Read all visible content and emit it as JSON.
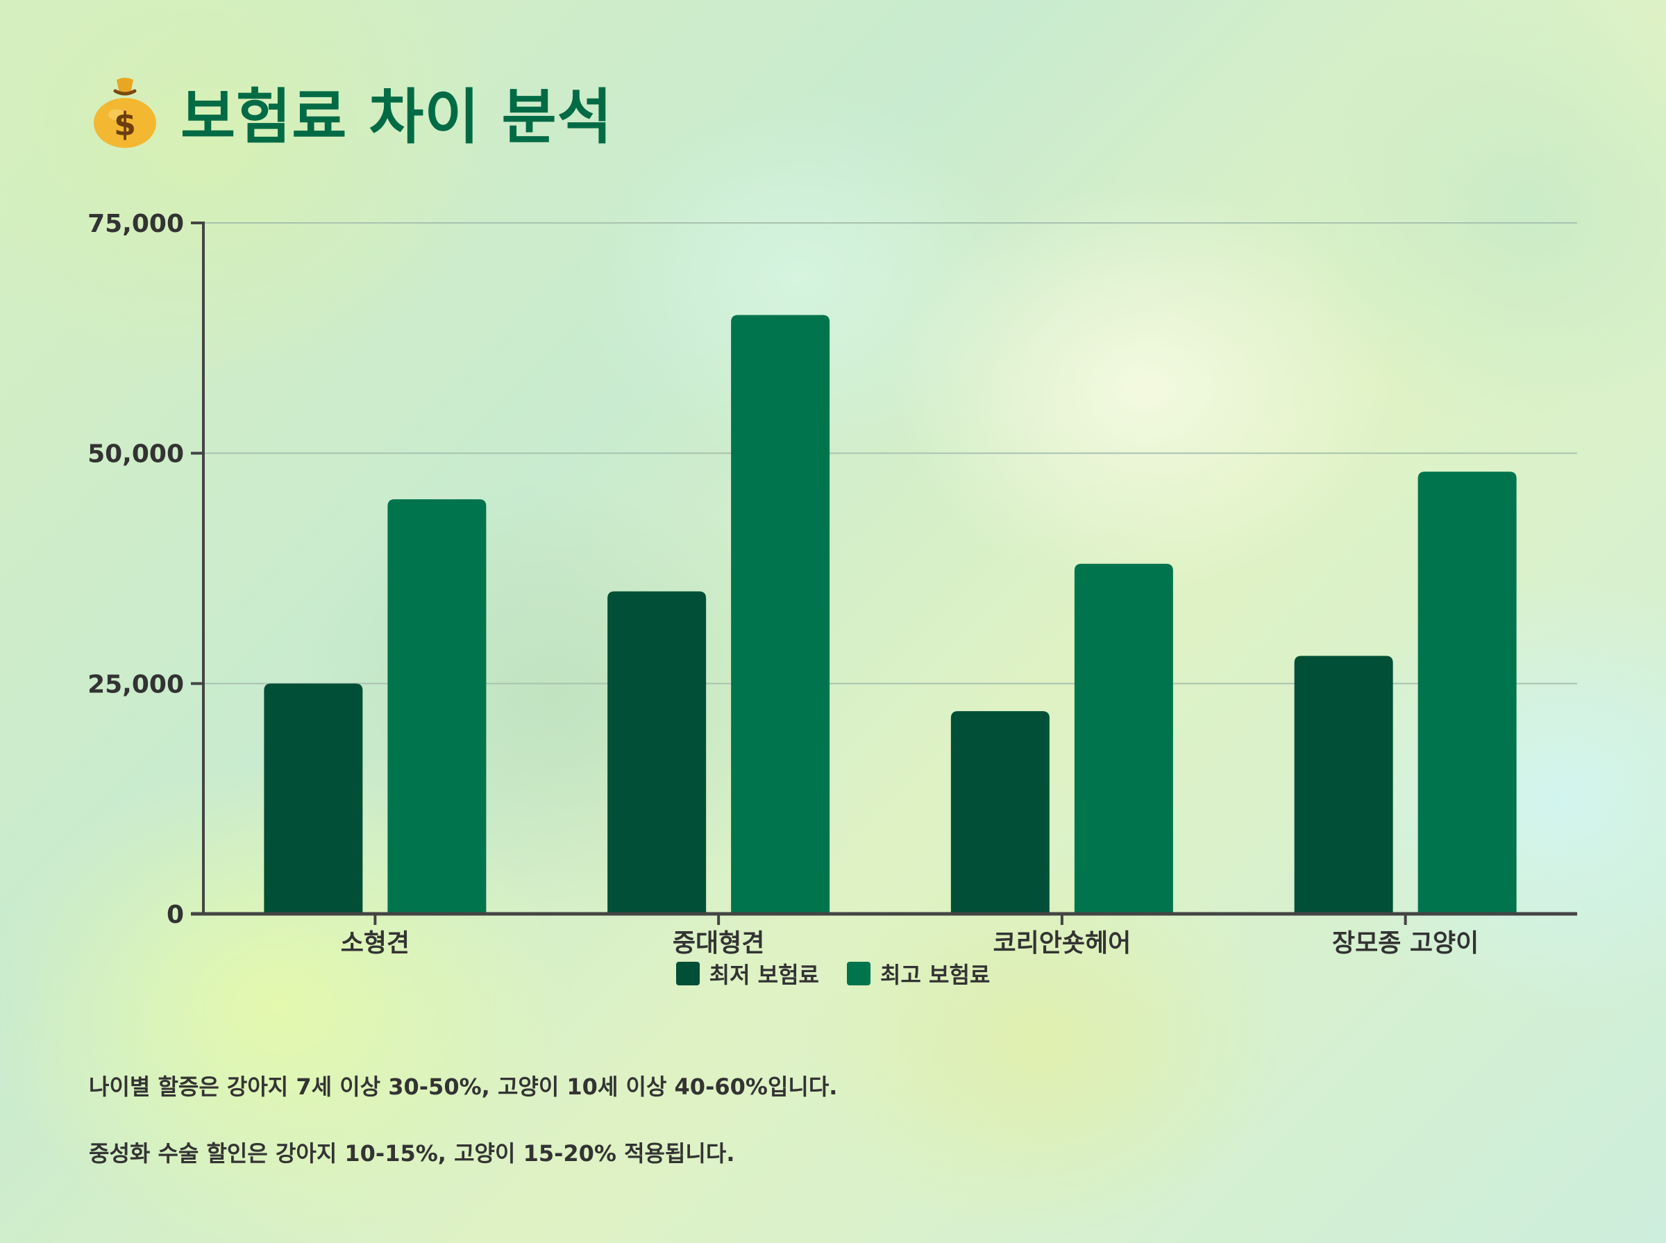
{
  "header": {
    "icon": "money-bag-icon",
    "title": "보험료 차이 분석"
  },
  "colors": {
    "title": "#006b45",
    "series_min": "#004f36",
    "series_max": "#00744d",
    "axis": "#444444",
    "grid": "#a9c3b0"
  },
  "chart_data": {
    "type": "bar",
    "title": "",
    "xlabel": "",
    "ylabel": "",
    "categories": [
      "소형견",
      "중대형견",
      "코리안숏헤어",
      "장모종 고양이"
    ],
    "series": [
      {
        "name": "최저 보험료",
        "values": [
          25000,
          35000,
          22000,
          28000
        ]
      },
      {
        "name": "최고 보험료",
        "values": [
          45000,
          65000,
          38000,
          48000
        ]
      }
    ],
    "ylim": [
      0,
      75000
    ],
    "yticks": [
      0,
      25000,
      50000,
      75000
    ],
    "ytick_labels": [
      "0",
      "25,000",
      "50,000",
      "75,000"
    ],
    "grid": true,
    "legend": "bottom-center"
  },
  "notes": [
    "나이별 할증은 강아지 7세 이상 30-50%, 고양이 10세 이상 40-60%입니다.",
    "중성화 수술 할인은 강아지 10-15%, 고양이 15-20% 적용됩니다."
  ]
}
